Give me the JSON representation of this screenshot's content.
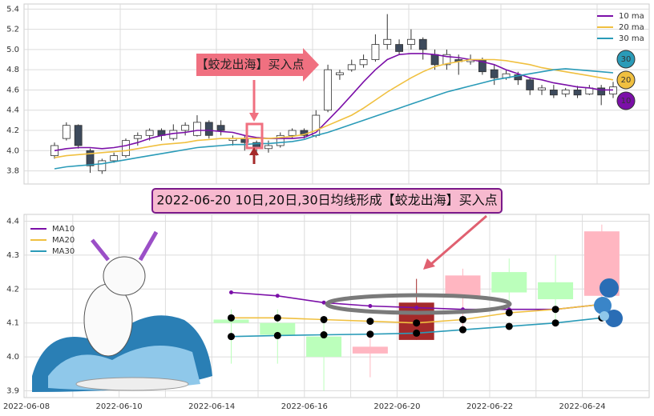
{
  "chart_data": [
    {
      "type": "candlestick",
      "annotation": "【蛟龙出海】买入点",
      "open": [
        3.95,
        4.12,
        4.25,
        4.0,
        3.8,
        3.9,
        3.95,
        4.12,
        4.15,
        4.2,
        4.12,
        4.2,
        4.15,
        4.28,
        4.25,
        4.1,
        4.12,
        4.08,
        4.02,
        4.05,
        4.15,
        4.2,
        4.15,
        4.4,
        4.75,
        4.8,
        4.85,
        4.9,
        5.05,
        5.05,
        5.05,
        5.1,
        4.95,
        4.85,
        4.9,
        4.88,
        4.9,
        4.8,
        4.72,
        4.75,
        4.7,
        4.6,
        4.6,
        4.56,
        4.6,
        4.56,
        4.62,
        4.56
      ],
      "high": [
        4.08,
        4.28,
        4.26,
        4.02,
        3.92,
        3.98,
        4.12,
        4.18,
        4.22,
        4.22,
        4.26,
        4.28,
        4.35,
        4.3,
        4.3,
        4.15,
        4.15,
        4.1,
        4.1,
        4.18,
        4.22,
        4.22,
        4.4,
        4.85,
        4.8,
        4.9,
        4.95,
        5.15,
        5.35,
        5.1,
        5.2,
        5.12,
        5.0,
        5.0,
        4.95,
        4.95,
        4.92,
        4.85,
        4.8,
        4.78,
        4.72,
        4.65,
        4.65,
        4.62,
        4.64,
        4.65,
        4.65,
        4.68
      ],
      "low": [
        3.92,
        4.1,
        4.02,
        3.78,
        3.77,
        3.88,
        3.93,
        4.05,
        4.1,
        4.1,
        4.1,
        4.15,
        4.14,
        4.12,
        4.15,
        4.05,
        4.0,
        3.95,
        3.98,
        4.03,
        4.12,
        4.12,
        4.13,
        4.38,
        4.7,
        4.78,
        4.82,
        4.88,
        5.0,
        4.95,
        5.0,
        4.9,
        4.8,
        4.8,
        4.75,
        4.85,
        4.75,
        4.65,
        4.7,
        4.65,
        4.55,
        4.55,
        4.52,
        4.53,
        4.52,
        4.55,
        4.45,
        4.52
      ],
      "close": [
        4.05,
        4.25,
        4.05,
        3.85,
        3.9,
        3.95,
        4.1,
        4.15,
        4.2,
        4.15,
        4.2,
        4.25,
        4.28,
        4.15,
        4.2,
        4.12,
        4.08,
        4.02,
        4.05,
        4.15,
        4.2,
        4.15,
        4.35,
        4.8,
        4.77,
        4.85,
        4.9,
        5.05,
        5.1,
        4.98,
        5.1,
        5.0,
        4.85,
        4.95,
        4.88,
        4.9,
        4.78,
        4.72,
        4.76,
        4.7,
        4.6,
        4.62,
        4.55,
        4.6,
        4.55,
        4.62,
        4.55,
        4.63
      ],
      "up_color": "#ffffff",
      "down_color": "#3d4a5c",
      "edge_color": "#333333",
      "series": [
        {
          "name": "10 ma",
          "color": "#7b0fa8",
          "end_label": "10",
          "values": [
            4.0,
            4.02,
            4.03,
            4.03,
            4.02,
            4.03,
            4.05,
            4.08,
            4.12,
            4.15,
            4.17,
            4.18,
            4.2,
            4.2,
            4.19,
            4.18,
            4.15,
            4.13,
            4.12,
            4.12,
            4.12,
            4.13,
            4.18,
            4.3,
            4.42,
            4.55,
            4.68,
            4.8,
            4.9,
            4.95,
            4.96,
            4.96,
            4.95,
            4.93,
            4.92,
            4.9,
            4.88,
            4.85,
            4.8,
            4.76,
            4.72,
            4.7,
            4.67,
            4.65,
            4.63,
            4.62,
            4.6,
            4.6
          ]
        },
        {
          "name": "20 ma",
          "color": "#f0c040",
          "end_label": "20",
          "values": [
            3.93,
            3.95,
            3.96,
            3.97,
            3.98,
            3.99,
            4.0,
            4.02,
            4.04,
            4.06,
            4.07,
            4.08,
            4.1,
            4.11,
            4.12,
            4.12,
            4.12,
            4.12,
            4.12,
            4.13,
            4.14,
            4.16,
            4.2,
            4.25,
            4.3,
            4.35,
            4.42,
            4.5,
            4.58,
            4.65,
            4.72,
            4.78,
            4.83,
            4.86,
            4.88,
            4.9,
            4.9,
            4.9,
            4.89,
            4.87,
            4.85,
            4.82,
            4.8,
            4.78,
            4.76,
            4.74,
            4.72,
            4.7
          ]
        },
        {
          "name": "30 ma",
          "color": "#2a9bb8",
          "end_label": "30",
          "values": [
            3.82,
            3.84,
            3.85,
            3.86,
            3.87,
            3.89,
            3.91,
            3.93,
            3.95,
            3.97,
            3.99,
            4.01,
            4.03,
            4.04,
            4.05,
            4.06,
            4.06,
            4.07,
            4.07,
            4.08,
            4.09,
            4.11,
            4.15,
            4.18,
            4.22,
            4.26,
            4.3,
            4.34,
            4.38,
            4.42,
            4.46,
            4.5,
            4.54,
            4.58,
            4.61,
            4.64,
            4.67,
            4.7,
            4.72,
            4.74,
            4.76,
            4.78,
            4.8,
            4.81,
            4.8,
            4.79,
            4.78,
            4.77
          ]
        }
      ],
      "ylim": [
        3.67,
        5.45
      ],
      "yticks": [
        3.8,
        {
          "value": 4,
          "label": "4.0"
        },
        4.2,
        4.4,
        4.6,
        4.8,
        {
          "value": 5,
          "label": "5.0"
        },
        5.2,
        5.4
      ],
      "grid": true,
      "legend": "upper right"
    },
    {
      "type": "candlestick",
      "title": "2022-06-20 10日,20日,30日均线形成【蛟龙出海】买入点",
      "categories": [
        "2022-06-08",
        null,
        "2022-06-10",
        null,
        "2022-06-14",
        null,
        "2022-06-16",
        null,
        "2022-06-20",
        null,
        "2022-06-22",
        null,
        "2022-06-24"
      ],
      "open": [
        null,
        null,
        null,
        null,
        4.11,
        4.1,
        4.06,
        4.01,
        4.05,
        4.18,
        4.25,
        4.22,
        4.18
      ],
      "high": [
        null,
        null,
        null,
        null,
        4.14,
        4.14,
        4.12,
        4.06,
        4.23,
        4.26,
        4.29,
        4.3,
        4.39
      ],
      "low": [
        null,
        null,
        null,
        null,
        3.98,
        3.98,
        3.9,
        3.94,
        4.05,
        4.08,
        4.13,
        4.1,
        4.15
      ],
      "close": [
        null,
        null,
        null,
        null,
        4.1,
        4.065,
        4.0,
        4.03,
        4.16,
        4.24,
        4.19,
        4.17,
        4.37
      ],
      "up_color": "#ffb6c1",
      "down_color": "#bbffbb",
      "highlight": "2022-06-20",
      "highlight_color": "#a52a2a",
      "series": [
        {
          "name": "MA10",
          "color": "#7b0fa8",
          "marker_color": "#7b0fa8",
          "values": [
            null,
            null,
            null,
            null,
            4.19,
            4.18,
            4.16,
            4.15,
            4.145,
            4.14,
            4.14,
            4.14,
            4.155
          ]
        },
        {
          "name": "MA20",
          "color": "#f0c040",
          "marker_color": "#000000",
          "values": [
            null,
            null,
            null,
            null,
            4.115,
            4.115,
            4.11,
            4.105,
            4.1,
            4.11,
            4.13,
            4.14,
            4.155
          ]
        },
        {
          "name": "MA30",
          "color": "#2a9bb8",
          "marker_color": "#000000",
          "values": [
            null,
            null,
            null,
            null,
            4.06,
            4.063,
            4.065,
            4.067,
            4.07,
            4.08,
            4.09,
            4.1,
            4.115
          ]
        }
      ],
      "ylim": [
        3.88,
        4.42
      ],
      "yticks": [
        3.9,
        {
          "value": 4,
          "label": "4.0"
        },
        4.1,
        4.2,
        4.3,
        4.4
      ],
      "grid": true,
      "legend": "upper left"
    }
  ]
}
